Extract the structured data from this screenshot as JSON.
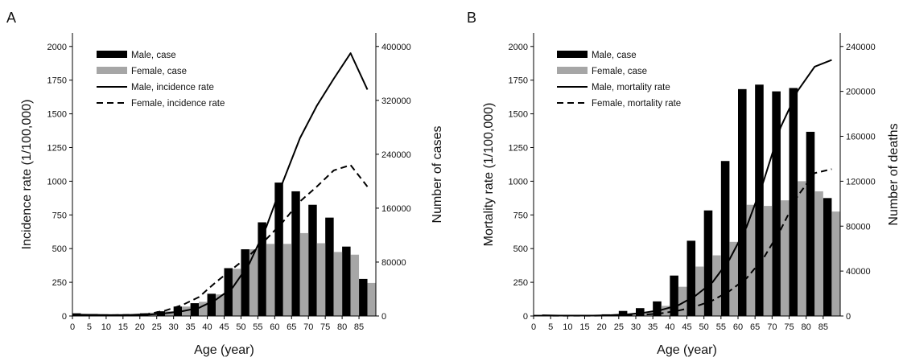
{
  "chart_data": [
    {
      "type": "bar",
      "panel_label": "A",
      "xlabel": "Age (year)",
      "ylabel_left": "Incidence rate (1/100,000)",
      "ylabel_right": "Number of cases",
      "categories": [
        "0",
        "5",
        "10",
        "15",
        "20",
        "25",
        "30",
        "35",
        "40",
        "45",
        "50",
        "55",
        "60",
        "65",
        "70",
        "75",
        "80",
        "85"
      ],
      "ylim_left": [
        0,
        2100
      ],
      "yticks_left": [
        "0",
        "250",
        "500",
        "750",
        "1000",
        "1250",
        "1500",
        "1750",
        "2000"
      ],
      "ylim_right": [
        0,
        420000
      ],
      "yticks_right": [
        "0",
        "80000",
        "160000",
        "240000",
        "320000",
        "400000"
      ],
      "grid": false,
      "legend_position": "top-left",
      "series": [
        {
          "name": "Male, case",
          "kind": "bar",
          "axis": "right",
          "color": "#000000",
          "values": [
            4000,
            3000,
            2000,
            2000,
            4000,
            7000,
            14000,
            19000,
            33000,
            71000,
            99000,
            139000,
            198000,
            185000,
            165000,
            146000,
            103000,
            55000
          ]
        },
        {
          "name": "Female, case",
          "kind": "bar",
          "axis": "right",
          "color": "#a6a6a6",
          "values": [
            3000,
            2000,
            2000,
            3000,
            5000,
            7000,
            14000,
            21000,
            32000,
            70000,
            99000,
            107000,
            107000,
            123000,
            108000,
            95000,
            91000,
            49000
          ]
        },
        {
          "name": "Male, incidence rate",
          "kind": "line",
          "axis": "left",
          "color": "#000000",
          "dash": "solid",
          "values": [
            10,
            8,
            7,
            8,
            10,
            20,
            35,
            60,
            120,
            210,
            390,
            660,
            1000,
            1320,
            1560,
            1760,
            1950,
            1680
          ]
        },
        {
          "name": "Female, incidence rate",
          "kind": "line",
          "axis": "left",
          "color": "#000000",
          "dash": "dashed",
          "values": [
            8,
            7,
            7,
            8,
            15,
            40,
            80,
            140,
            250,
            350,
            450,
            570,
            700,
            850,
            960,
            1080,
            1120,
            960
          ]
        }
      ]
    },
    {
      "type": "bar",
      "panel_label": "B",
      "xlabel": "Age (year)",
      "ylabel_left": "Mortality rate (1/100,000)",
      "ylabel_right": "Number of deaths",
      "categories": [
        "0",
        "5",
        "10",
        "15",
        "20",
        "25",
        "30",
        "35",
        "40",
        "45",
        "50",
        "55",
        "60",
        "65",
        "70",
        "75",
        "80",
        "85"
      ],
      "ylim_left": [
        0,
        2100
      ],
      "yticks_left": [
        "0",
        "250",
        "500",
        "750",
        "1000",
        "1250",
        "1500",
        "1750",
        "2000"
      ],
      "ylim_right": [
        0,
        252000
      ],
      "yticks_right": [
        "0",
        "40000",
        "80000",
        "120000",
        "160000",
        "200000",
        "240000"
      ],
      "grid": false,
      "legend_position": "top-left",
      "series": [
        {
          "name": "Male, case",
          "kind": "bar",
          "axis": "right",
          "color": "#000000",
          "values": [
            1000,
            500,
            500,
            500,
            1500,
            4500,
            7000,
            13000,
            36000,
            67000,
            94000,
            138000,
            202000,
            206000,
            200000,
            203000,
            164000,
            105000
          ]
        },
        {
          "name": "Female, case",
          "kind": "bar",
          "axis": "right",
          "color": "#a6a6a6",
          "values": [
            500,
            500,
            500,
            500,
            1000,
            1500,
            3500,
            9000,
            26000,
            44000,
            54000,
            66000,
            99000,
            98000,
            103000,
            120000,
            111000,
            93000
          ]
        },
        {
          "name": "Male, mortality rate",
          "kind": "line",
          "axis": "left",
          "color": "#000000",
          "dash": "solid",
          "values": [
            5,
            3,
            3,
            3,
            6,
            12,
            25,
            45,
            80,
            150,
            250,
            420,
            660,
            1000,
            1400,
            1670,
            1850,
            1900
          ]
        },
        {
          "name": "Female, mortality rate",
          "kind": "line",
          "axis": "left",
          "color": "#000000",
          "dash": "dashed",
          "values": [
            3,
            2,
            2,
            2,
            4,
            6,
            10,
            20,
            40,
            70,
            115,
            185,
            280,
            430,
            640,
            890,
            1060,
            1090
          ]
        }
      ]
    }
  ]
}
